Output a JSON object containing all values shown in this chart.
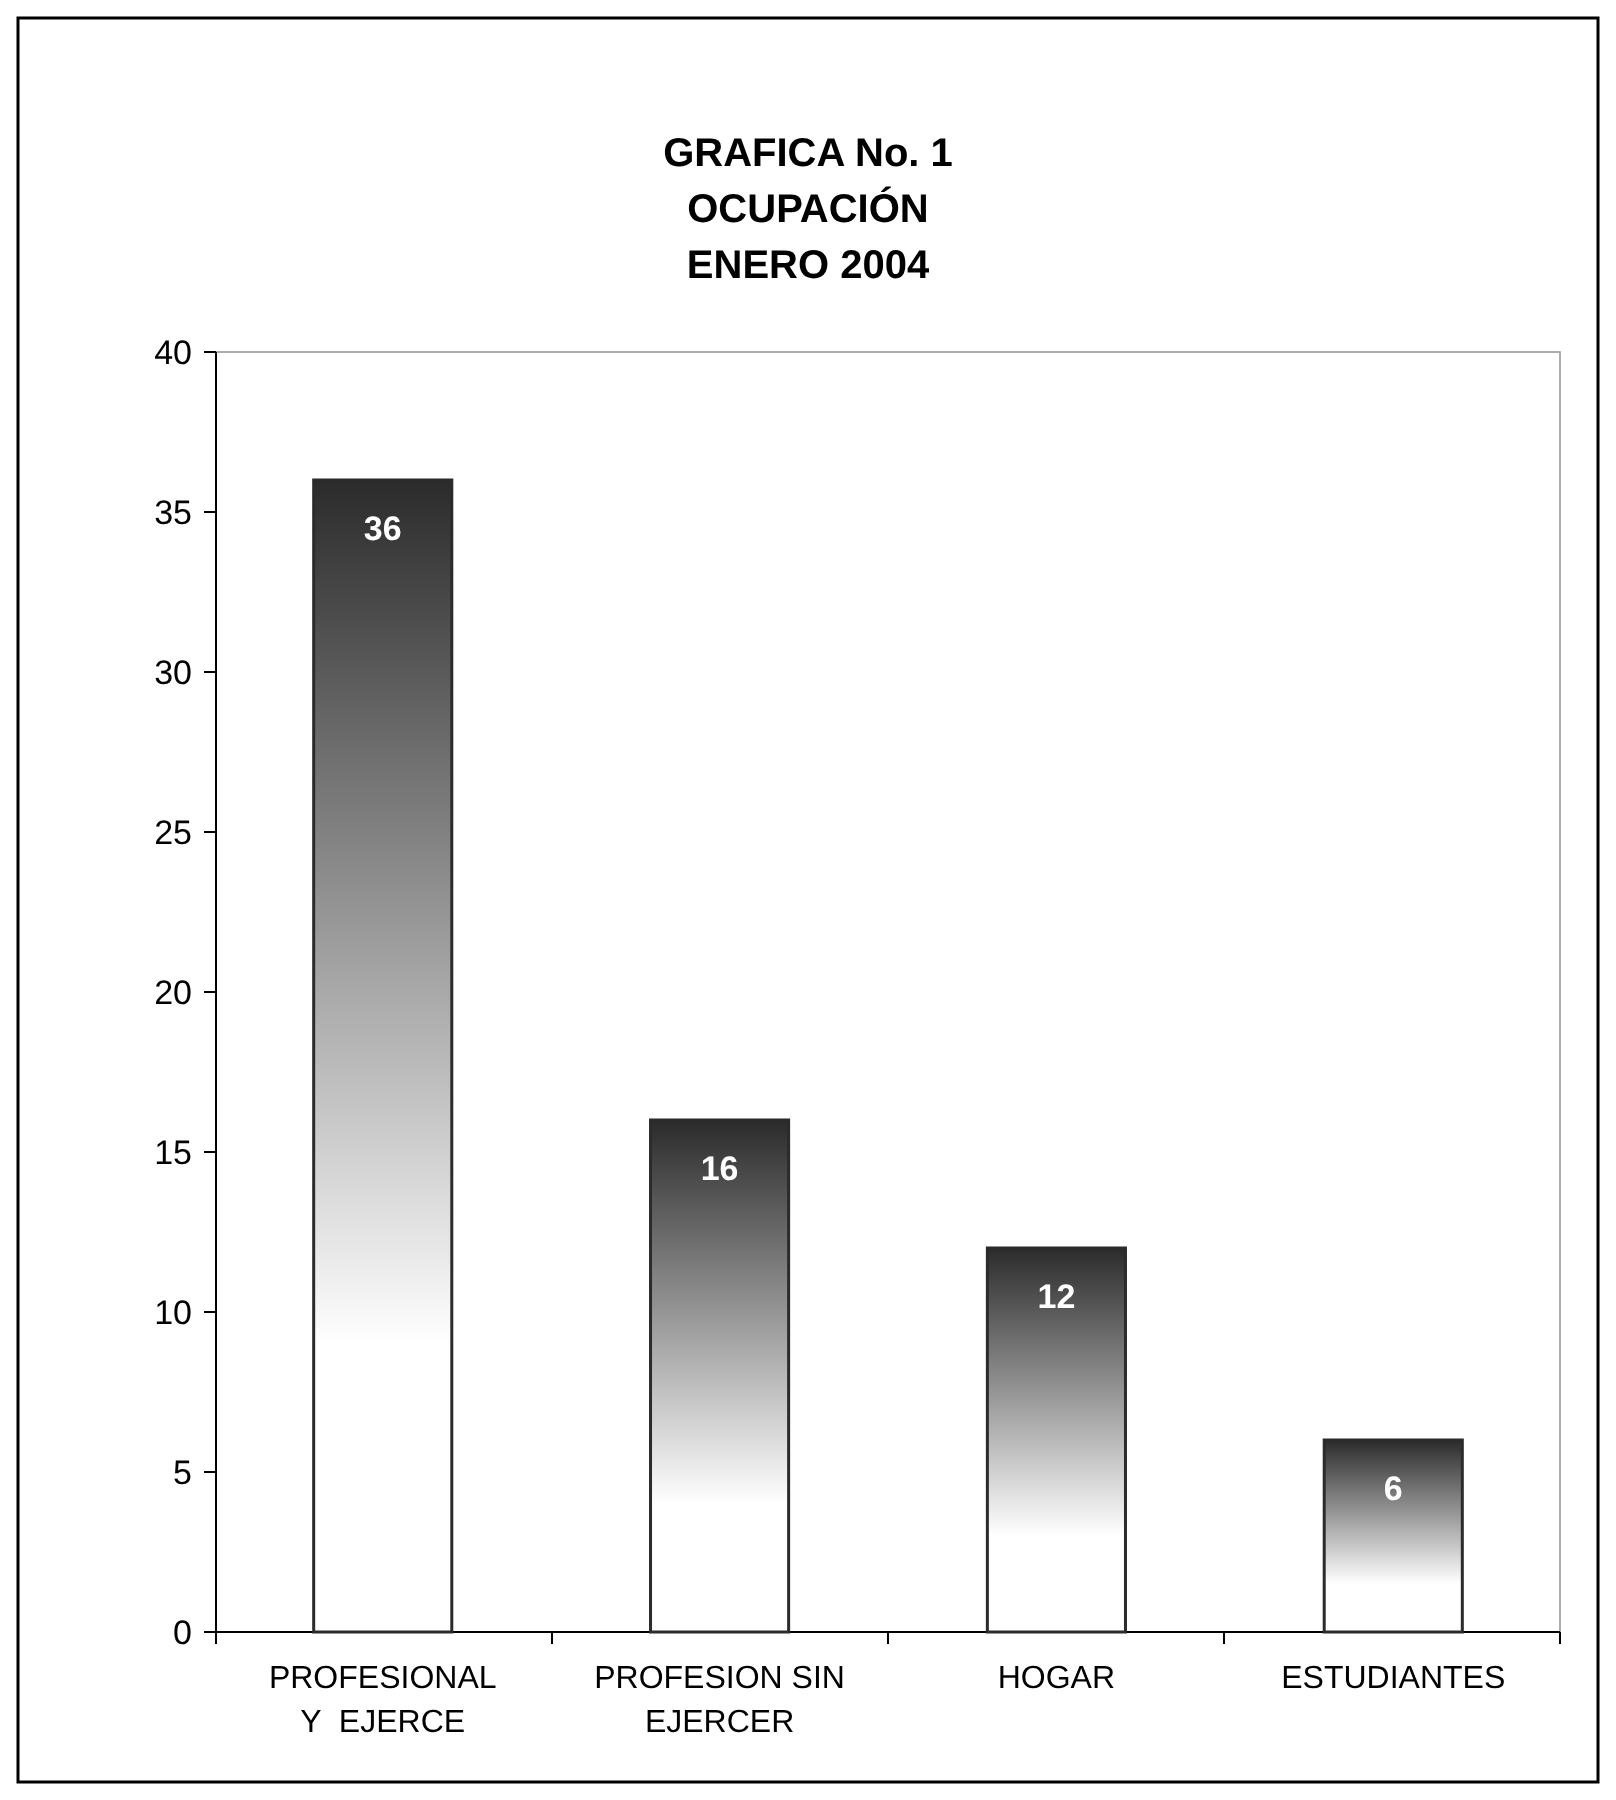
{
  "chart_data": {
    "type": "bar",
    "title": "GRAFICA No. 1\nOCUPACIÓN\nENERO 2004",
    "categories": [
      "PROFESIONAL\nY  EJERCE",
      "PROFESION SIN\nEJERCER",
      "HOGAR",
      "ESTUDIANTES"
    ],
    "values": [
      36,
      16,
      12,
      6
    ],
    "color": "#2b2b2b",
    "ylim": [
      0,
      40
    ],
    "yticks": [
      0,
      5,
      10,
      15,
      20,
      25,
      30,
      35,
      40
    ],
    "grid": false,
    "data_labels": true
  }
}
